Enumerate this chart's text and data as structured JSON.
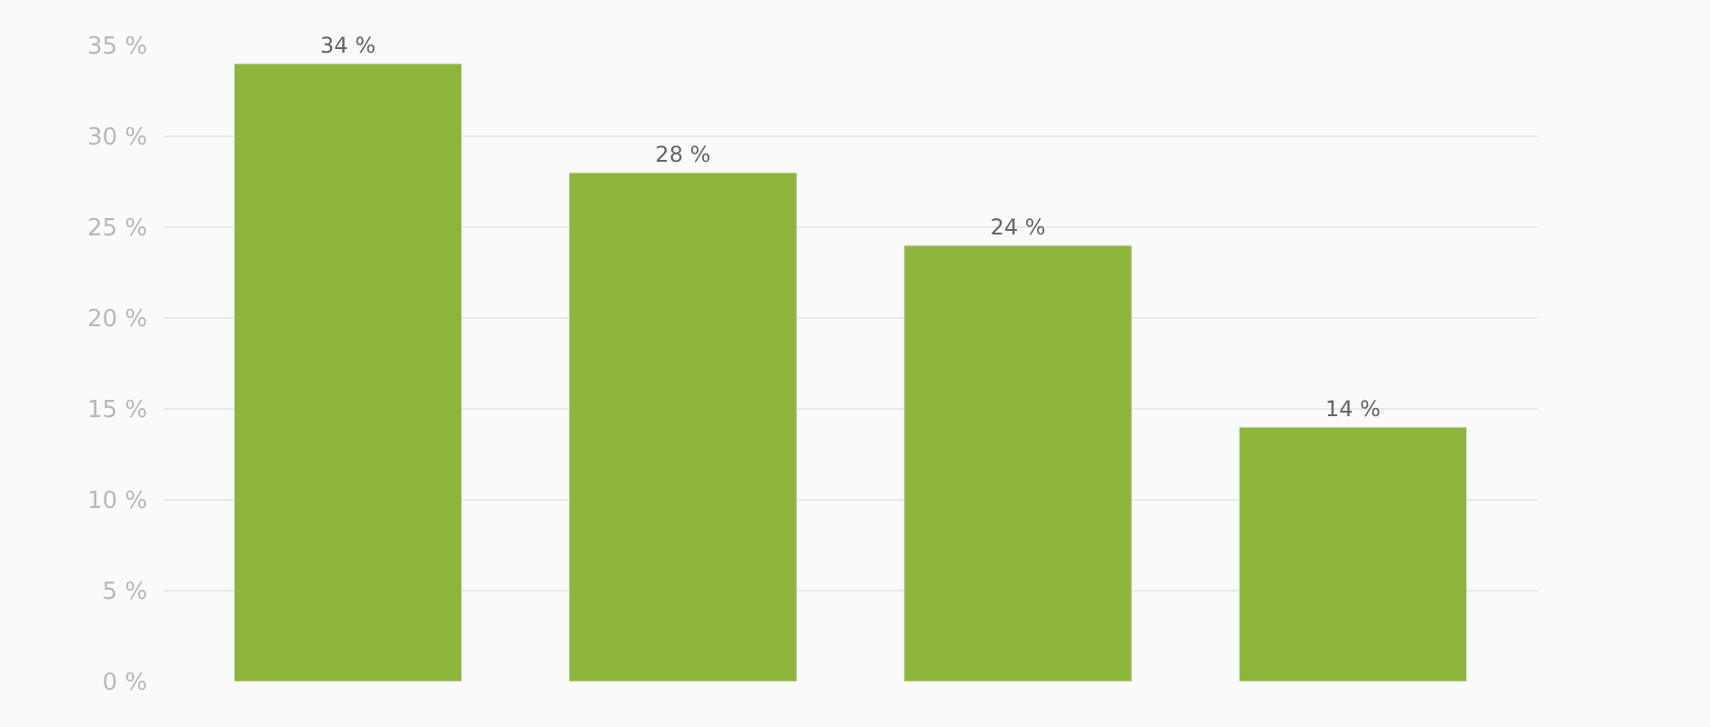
{
  "chart_data": {
    "type": "bar",
    "categories": [
      null,
      null,
      null,
      null
    ],
    "values": [
      34,
      28,
      24,
      14
    ],
    "value_labels": [
      "34 %",
      "28 %",
      "24 %",
      "14 %"
    ],
    "color": "#8db53c",
    "ylim": [
      0,
      35
    ],
    "yticks": [
      {
        "value": 0,
        "label": "0 %"
      },
      {
        "value": 5,
        "label": "5 %"
      },
      {
        "value": 10,
        "label": "10 %"
      },
      {
        "value": 15,
        "label": "15 %"
      },
      {
        "value": 20,
        "label": "20 %"
      },
      {
        "value": 25,
        "label": "25 %"
      },
      {
        "value": 30,
        "label": "30 %"
      },
      {
        "value": 35,
        "label": "35 %"
      }
    ],
    "grid": "y",
    "tick_labels": "y"
  }
}
